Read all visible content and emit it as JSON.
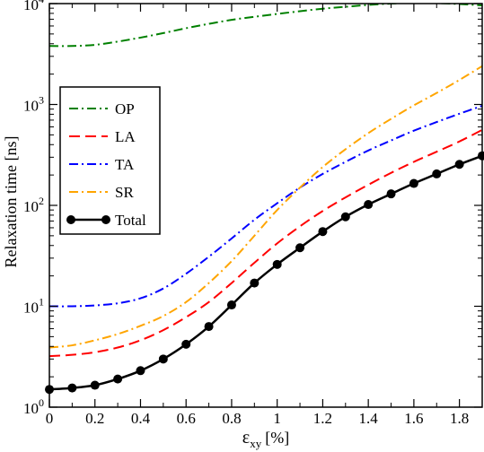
{
  "chart_data": {
    "type": "line",
    "xlabel": "ε",
    "xlabel_sub": "xy",
    "xlabel_unit": "[%]",
    "ylabel": "Relaxation time [ns]",
    "xlim": [
      0,
      1.9
    ],
    "ylim": [
      1,
      10000
    ],
    "yscale": "log",
    "grid": false,
    "legend": "top-left",
    "x_ticks": [
      0,
      0.2,
      0.4,
      0.6,
      0.8,
      1,
      1.2,
      1.4,
      1.6,
      1.8
    ],
    "x_tick_labels": [
      "0",
      "0.2",
      "0.4",
      "0.6",
      "0.8",
      "1",
      "1.2",
      "1.4",
      "1.6",
      "1.8"
    ],
    "y_ticks": [
      1,
      10,
      100,
      1000,
      10000
    ],
    "y_tick_labels": [
      {
        "base": "10",
        "exp": "0"
      },
      {
        "base": "10",
        "exp": "1"
      },
      {
        "base": "10",
        "exp": "2"
      },
      {
        "base": "10",
        "exp": "3"
      },
      {
        "base": "10",
        "exp": "4"
      }
    ],
    "series": [
      {
        "name": "OP",
        "color": "#008000",
        "dash": "dash-dot",
        "x": [
          0,
          0.1,
          0.2,
          0.3,
          0.4,
          0.5,
          0.6,
          0.7,
          0.8,
          0.9,
          1.0,
          1.1,
          1.2,
          1.3,
          1.4,
          1.5,
          1.6,
          1.7,
          1.8,
          1.9
        ],
        "y": [
          3800,
          3800,
          3900,
          4200,
          4600,
          5100,
          5700,
          6300,
          6900,
          7400,
          7900,
          8400,
          8900,
          9300,
          9700,
          10000,
          10200,
          10100,
          9900,
          9600
        ]
      },
      {
        "name": "LA",
        "color": "#ff0000",
        "dash": "dash",
        "x": [
          0,
          0.1,
          0.2,
          0.3,
          0.4,
          0.5,
          0.6,
          0.7,
          0.8,
          0.9,
          1.0,
          1.1,
          1.2,
          1.3,
          1.4,
          1.5,
          1.6,
          1.7,
          1.8,
          1.9
        ],
        "y": [
          3.2,
          3.3,
          3.5,
          3.9,
          4.6,
          5.8,
          7.8,
          11,
          17,
          27,
          42,
          62,
          88,
          120,
          160,
          210,
          270,
          340,
          430,
          560
        ]
      },
      {
        "name": "TA",
        "color": "#0000ff",
        "dash": "dash-dot",
        "x": [
          0,
          0.1,
          0.2,
          0.3,
          0.4,
          0.5,
          0.6,
          0.7,
          0.8,
          0.9,
          1.0,
          1.1,
          1.2,
          1.3,
          1.4,
          1.5,
          1.6,
          1.7,
          1.8,
          1.9
        ],
        "y": [
          10,
          10,
          10.2,
          10.7,
          12,
          15,
          21,
          31,
          47,
          72,
          105,
          150,
          205,
          270,
          350,
          440,
          550,
          670,
          810,
          970
        ]
      },
      {
        "name": "SR",
        "color": "#ffa500",
        "dash": "dash-dot",
        "x": [
          0,
          0.1,
          0.2,
          0.3,
          0.4,
          0.5,
          0.6,
          0.7,
          0.8,
          0.9,
          1.0,
          1.1,
          1.2,
          1.3,
          1.4,
          1.5,
          1.6,
          1.7,
          1.8,
          1.9
        ],
        "y": [
          3.9,
          4.1,
          4.6,
          5.3,
          6.4,
          8.0,
          11,
          17,
          28,
          50,
          90,
          150,
          240,
          360,
          520,
          720,
          980,
          1300,
          1750,
          2400
        ]
      },
      {
        "name": "Total",
        "color": "#000000",
        "dash": "solid",
        "markers": true,
        "x": [
          0,
          0.1,
          0.2,
          0.3,
          0.4,
          0.5,
          0.6,
          0.7,
          0.8,
          0.9,
          1.0,
          1.1,
          1.2,
          1.3,
          1.4,
          1.5,
          1.6,
          1.7,
          1.8,
          1.9
        ],
        "y": [
          1.5,
          1.55,
          1.65,
          1.9,
          2.3,
          3.0,
          4.2,
          6.3,
          10.3,
          17,
          26,
          38,
          55,
          77,
          102,
          130,
          165,
          205,
          255,
          310
        ]
      }
    ]
  }
}
